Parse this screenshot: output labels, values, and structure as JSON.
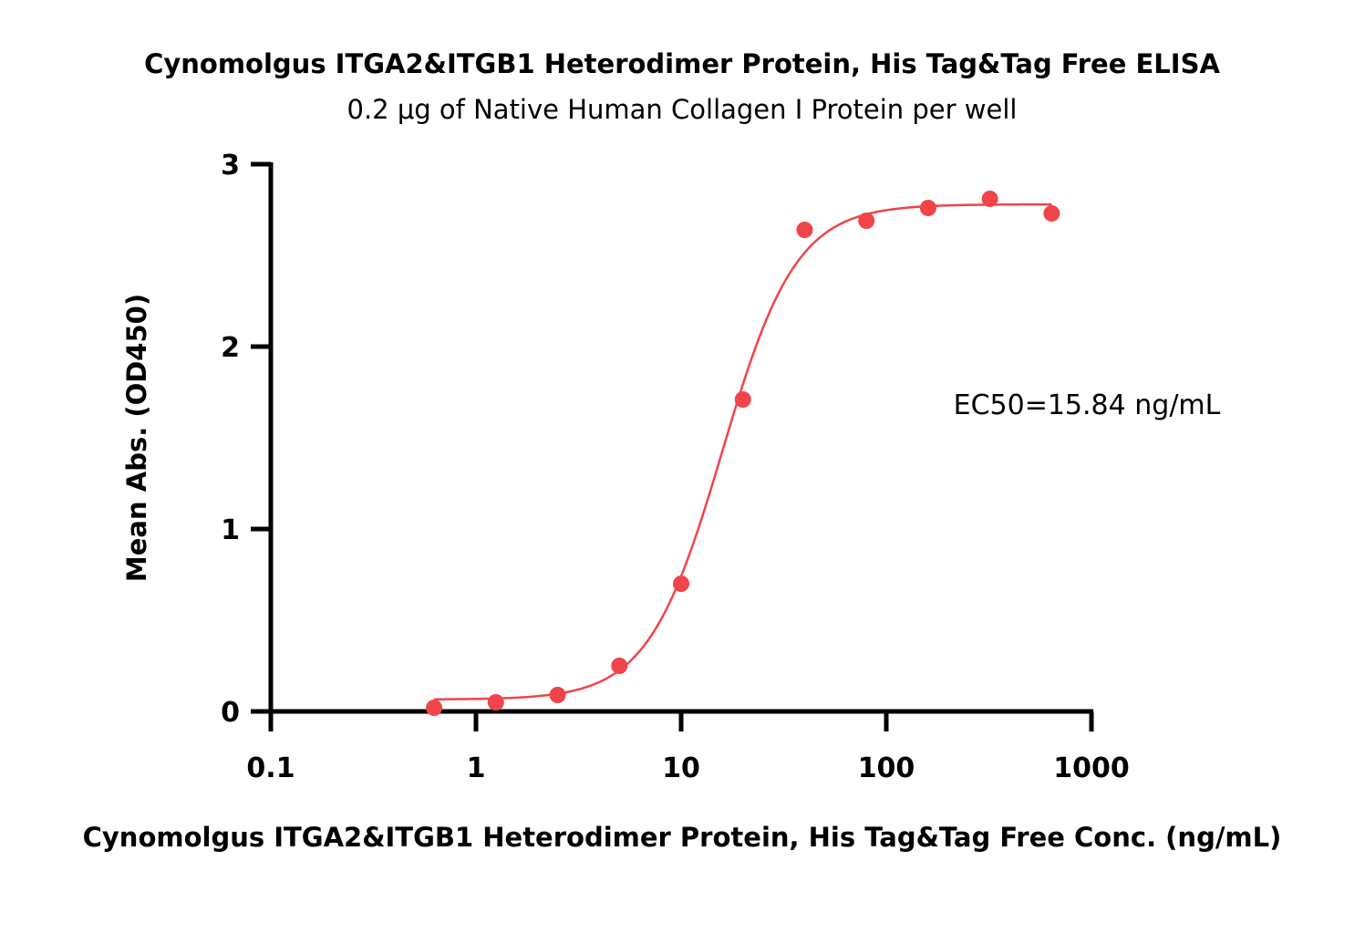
{
  "chart_data": {
    "type": "scatter",
    "title": "Cynomolgus ITGA2&ITGB1 Heterodimer Protein, His Tag&Tag Free ELISA",
    "subtitle": "0.2 μg of Native Human Collagen I Protein per well",
    "xlabel": "Cynomolgus ITGA2&ITGB1 Heterodimer Protein, His Tag&Tag Free Conc. (ng/mL)",
    "ylabel": "Mean Abs. (OD450)",
    "x_scale": "log",
    "xlim": [
      0.1,
      1000
    ],
    "ylim": [
      0,
      3
    ],
    "x_ticks": [
      {
        "value": 0.1,
        "label": "0.1"
      },
      {
        "value": 1,
        "label": "1"
      },
      {
        "value": 10,
        "label": "10"
      },
      {
        "value": 100,
        "label": "100"
      },
      {
        "value": 1000,
        "label": "1000"
      }
    ],
    "y_ticks": [
      {
        "value": 0,
        "label": "0"
      },
      {
        "value": 1,
        "label": "1"
      },
      {
        "value": 2,
        "label": "2"
      },
      {
        "value": 3,
        "label": "3"
      }
    ],
    "grid": false,
    "series": [
      {
        "color": "#f0444a",
        "x": [
          0.625,
          1.25,
          2.5,
          5,
          10,
          20,
          40,
          80,
          160,
          320,
          640
        ],
        "y": [
          0.02,
          0.05,
          0.09,
          0.25,
          0.7,
          1.71,
          2.64,
          2.69,
          2.76,
          2.81,
          2.73
        ],
        "fit": {
          "model": "4PL",
          "bottom": 0.065,
          "top": 2.78,
          "ec50": 15.84,
          "hill": 2.4
        }
      }
    ],
    "annotations": [
      {
        "text": "EC50=15.84 ng/mL"
      }
    ]
  }
}
